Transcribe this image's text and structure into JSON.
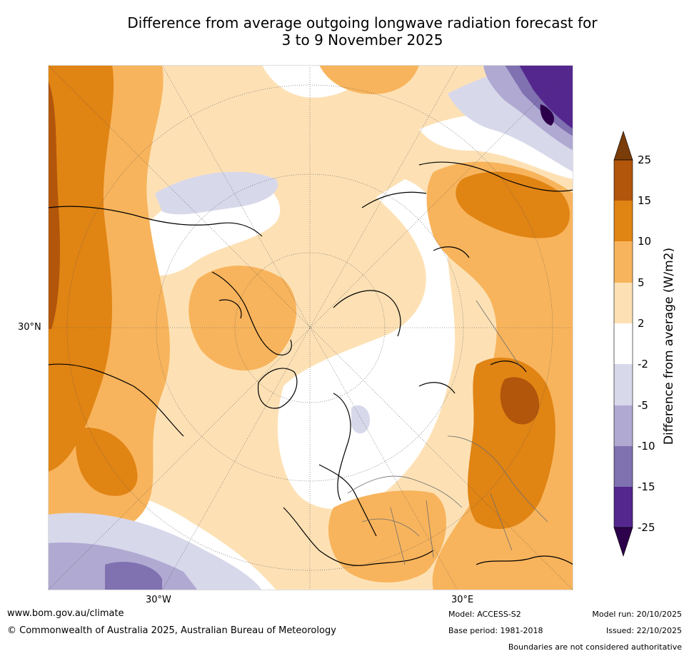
{
  "title": {
    "line1": "Difference from average outgoing longwave radiation forecast for",
    "line2": "3 to 9 November 2025"
  },
  "map": {
    "projection": "north polar stereographic",
    "lat_label": "30°N",
    "lon_labels": [
      "30°W",
      "30°E"
    ]
  },
  "colorbar": {
    "label": "Difference from average (W/m2)",
    "ticks": [
      "25",
      "15",
      "10",
      "5",
      "2",
      "-2",
      "-5",
      "-10",
      "-15",
      "-25"
    ],
    "colors": {
      "extend_top": "#7a3c09",
      "b15_25": "#b1560b",
      "b10_15": "#e08414",
      "b5_10": "#f8b45c",
      "b2_5": "#fde1b5",
      "neutral": "#ffffff",
      "bm5_m2": "#d8d8eb",
      "bm10_m5": "#b0a9d2",
      "bm15_m10": "#8071b1",
      "bm25_m15": "#54278f",
      "extend_bottom": "#2d004b"
    }
  },
  "footer": {
    "website": "www.bom.gov.au/climate",
    "copyright": "© Commonwealth of Australia 2025, Australian Bureau of Meteorology",
    "model": "Model: ACCESS-S2",
    "base_period": "Base period: 1981-2018",
    "model_run": "Model run: 20/10/2025",
    "issued": "Issued: 22/10/2025",
    "disclaimer": "Boundaries are not considered authoritative"
  }
}
